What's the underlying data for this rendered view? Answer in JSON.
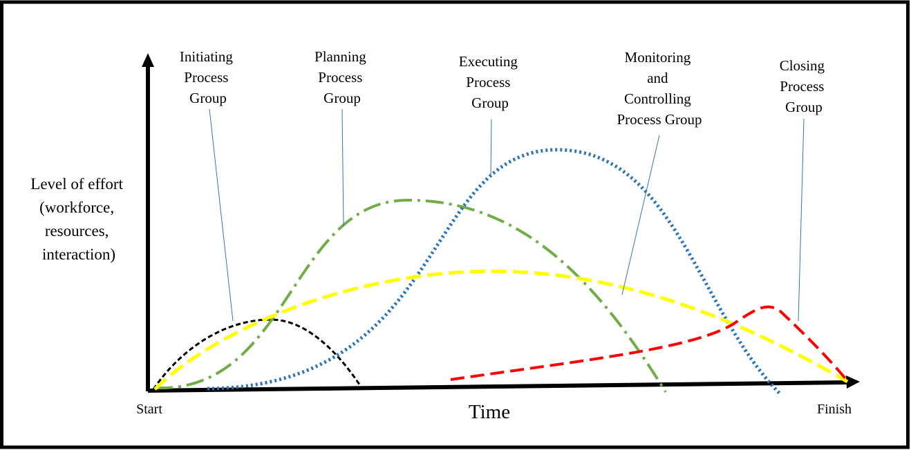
{
  "diagram": {
    "y_axis_label": [
      "Level of effort",
      "(workforce,",
      "resources,",
      "interaction)"
    ],
    "x_axis_label": "Time",
    "start_label": "Start",
    "finish_label": "Finish",
    "groups": [
      {
        "key": "initiating",
        "label": [
          "Initiating",
          "Process",
          "Group"
        ],
        "color": "#000000",
        "dash": "dashed"
      },
      {
        "key": "planning",
        "label": [
          "Planning",
          "Process",
          "Group"
        ],
        "color": "#70ad47",
        "dash": "dash-dot"
      },
      {
        "key": "executing",
        "label": [
          "Executing",
          "Process",
          "Group"
        ],
        "color": "#2e75b6",
        "dash": "dotted"
      },
      {
        "key": "monitoring",
        "label": [
          "Monitoring",
          "and",
          "Controlling",
          "Process Group"
        ],
        "color": "#ffff00",
        "dash": "long-dashed"
      },
      {
        "key": "closing",
        "label": [
          "Closing",
          "Process",
          "Group"
        ],
        "color": "#ff0000",
        "dash": "long-dashed"
      }
    ],
    "leader_line_color": "#2e75b6",
    "frame_color": "#000000"
  }
}
